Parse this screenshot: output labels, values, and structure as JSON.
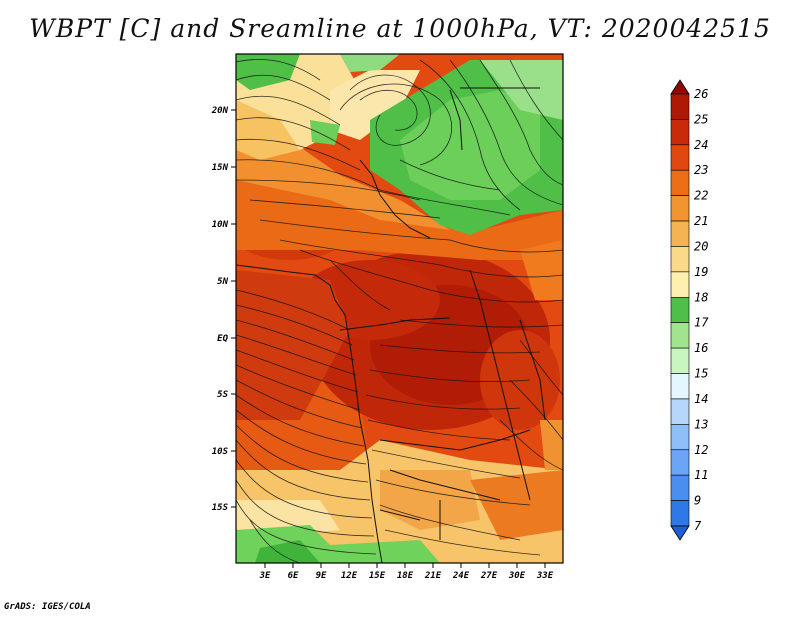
{
  "title": "WBPT [C] and Sreamline at 1000hPa, VT: 2020042515",
  "footer": "GrADS: IGES/COLA",
  "map": {
    "lat_labels": [
      "20N",
      "15N",
      "10N",
      "5N",
      "EQ",
      "5S",
      "10S",
      "15S"
    ],
    "lon_labels": [
      "3E",
      "6E",
      "9E",
      "12E",
      "15E",
      "18E",
      "21E",
      "24E",
      "27E",
      "30E",
      "33E"
    ],
    "lat_range": [
      -20,
      24
    ],
    "lon_range": [
      0,
      35
    ]
  },
  "colorbar": {
    "levels": [
      "7",
      "9",
      "11",
      "12",
      "13",
      "14",
      "15",
      "16",
      "17",
      "18",
      "19",
      "20",
      "21",
      "22",
      "23",
      "24",
      "25",
      "26"
    ],
    "colors": [
      "#1f5fd6",
      "#2f78e8",
      "#4a8ff0",
      "#6aa6f5",
      "#8fbff8",
      "#b6d7fb",
      "#e4f6ff",
      "#c8f5c0",
      "#a0e48e",
      "#4fbf48",
      "#fff0b0",
      "#fbd98a",
      "#f6b352",
      "#f1962e",
      "#ec6e16",
      "#e04810",
      "#c82a0a",
      "#b01806",
      "#8e0a02"
    ]
  }
}
